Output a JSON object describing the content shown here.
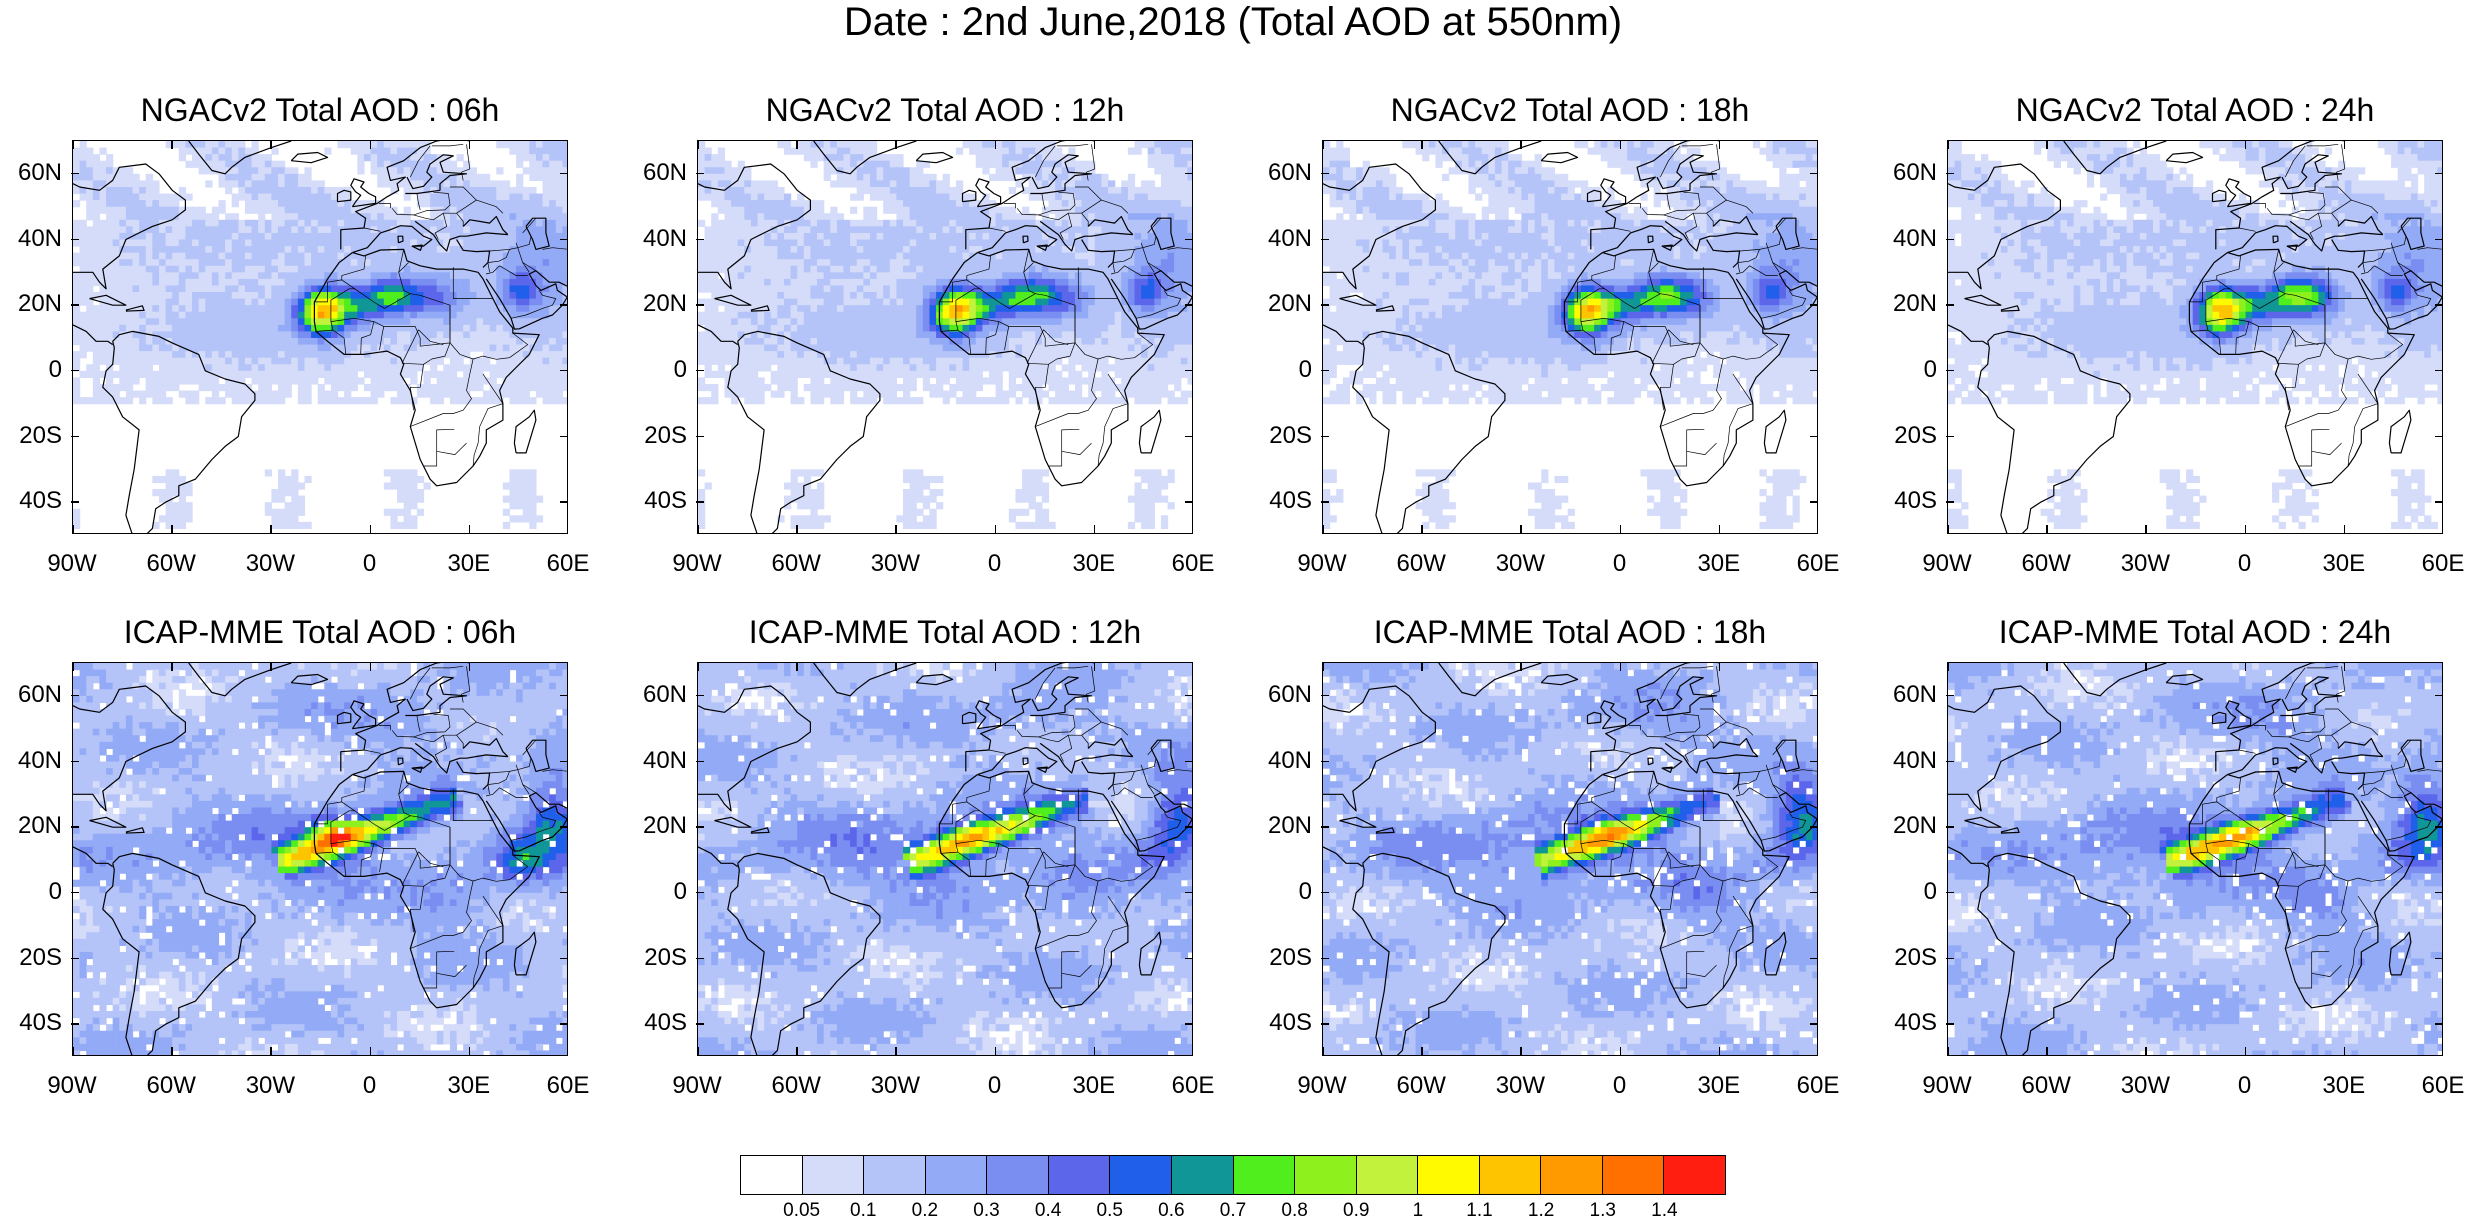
{
  "title": "Date : 2nd June,2018 (Total AOD at 550nm)",
  "panels": [
    {
      "title": "NGACv2 Total AOD : 06h",
      "model": "ngac",
      "hour": 6
    },
    {
      "title": "NGACv2 Total AOD : 12h",
      "model": "ngac",
      "hour": 12
    },
    {
      "title": "NGACv2 Total AOD : 18h",
      "model": "ngac",
      "hour": 18
    },
    {
      "title": "NGACv2 Total AOD : 24h",
      "model": "ngac",
      "hour": 24
    },
    {
      "title": "ICAP-MME Total AOD : 06h",
      "model": "icap",
      "hour": 6
    },
    {
      "title": "ICAP-MME Total AOD : 12h",
      "model": "icap",
      "hour": 12
    },
    {
      "title": "ICAP-MME Total AOD : 18h",
      "model": "icap",
      "hour": 18
    },
    {
      "title": "ICAP-MME Total AOD : 24h",
      "model": "icap",
      "hour": 24
    }
  ],
  "lat_labels": [
    "60N",
    "40N",
    "20N",
    "0",
    "20S",
    "40S"
  ],
  "lon_labels": [
    "90W",
    "60W",
    "30W",
    "0",
    "30E",
    "60E"
  ],
  "colorbar": {
    "colors": [
      "#ffffff",
      "#d5dcfa",
      "#b4c3f8",
      "#93aaf6",
      "#7a8ef2",
      "#5c66ea",
      "#1f5fea",
      "#109696",
      "#4fee1c",
      "#8ef01c",
      "#c2f23c",
      "#fffa00",
      "#ffc400",
      "#ff9a00",
      "#ff7000",
      "#ff1e10"
    ],
    "labels": [
      "0.05",
      "0.1",
      "0.2",
      "0.3",
      "0.4",
      "0.5",
      "0.6",
      "0.7",
      "0.8",
      "0.9",
      "1",
      "1.1",
      "1.2",
      "1.3",
      "1.4"
    ]
  }
}
